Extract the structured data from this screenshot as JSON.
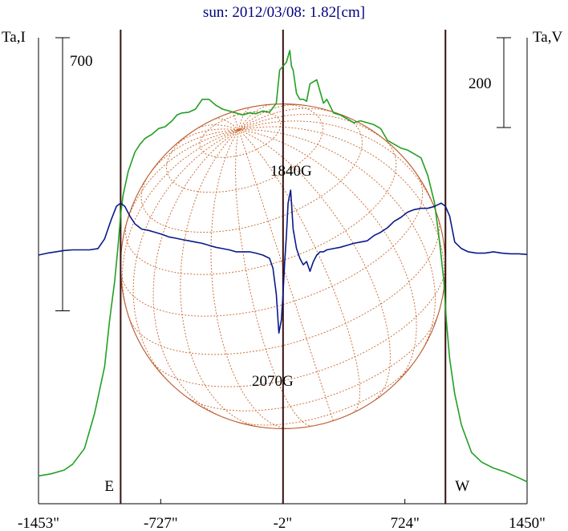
{
  "chart_data": {
    "type": "line",
    "title": "sun: 2012/03/08: 1.82[cm]",
    "ylabel_left": "Ta,I",
    "ylabel_right": "Ta,V",
    "scale_left_label": "700",
    "scale_right_label": "200",
    "x_ticks": [
      {
        "value": -1453,
        "label": "-1453\""
      },
      {
        "value": -727,
        "label": "-727\""
      },
      {
        "value": -2,
        "label": "-2\""
      },
      {
        "value": 724,
        "label": "724\""
      },
      {
        "value": 1450,
        "label": "1450\""
      }
    ],
    "xlim": [
      -1453,
      1450
    ],
    "vertical_lines": [
      {
        "x": -965,
        "label": "E"
      },
      {
        "x": 0,
        "label": ""
      },
      {
        "x": 965,
        "label": "W"
      }
    ],
    "annotations": [
      {
        "text": "1840G",
        "x": 60,
        "y_series": "V"
      },
      {
        "text": "2070G",
        "x": -30,
        "y_series": "V"
      }
    ],
    "solar_disk": {
      "center_x": 0,
      "radius_arcsec": 965,
      "color": "#b5562c",
      "grid_color": "#c8642a"
    },
    "series": [
      {
        "name": "I",
        "color": "#22a022",
        "x": [
          -1453,
          -1380,
          -1300,
          -1250,
          -1180,
          -1120,
          -1060,
          -1030,
          -1000,
          -980,
          -965,
          -950,
          -920,
          -880,
          -850,
          -820,
          -780,
          -740,
          -700,
          -660,
          -630,
          -600,
          -560,
          -520,
          -480,
          -440,
          -400,
          -360,
          -320,
          -280,
          -240,
          -200,
          -160,
          -120,
          -80,
          -40,
          -20,
          0,
          20,
          40,
          50,
          60,
          80,
          100,
          120,
          140,
          160,
          200,
          240,
          260,
          300,
          340,
          380,
          420,
          460,
          500,
          540,
          580,
          620,
          660,
          700,
          740,
          780,
          820,
          860,
          900,
          930,
          955,
          970,
          990,
          1020,
          1060,
          1120,
          1180,
          1250,
          1320,
          1400,
          1450
        ],
        "y": [
          20,
          25,
          35,
          50,
          90,
          180,
          300,
          420,
          520,
          610,
          690,
          740,
          800,
          850,
          870,
          885,
          895,
          910,
          915,
          930,
          945,
          950,
          952,
          960,
          985,
          985,
          970,
          960,
          955,
          950,
          945,
          950,
          948,
          955,
          952,
          975,
          1060,
          1070,
          1080,
          1110,
          1070,
          1060,
          1000,
          985,
          985,
          980,
          1025,
          1035,
          975,
          985,
          950,
          945,
          935,
          925,
          930,
          925,
          920,
          910,
          880,
          870,
          860,
          855,
          845,
          835,
          790,
          720,
          620,
          520,
          420,
          320,
          230,
          150,
          80,
          55,
          40,
          30,
          15,
          5
        ]
      },
      {
        "name": "V",
        "color": "#0a1a8a",
        "x": [
          -1453,
          -1400,
          -1350,
          -1300,
          -1250,
          -1200,
          -1150,
          -1100,
          -1060,
          -1020,
          -990,
          -965,
          -940,
          -910,
          -880,
          -840,
          -800,
          -760,
          -720,
          -680,
          -640,
          -600,
          -560,
          -520,
          -480,
          -440,
          -400,
          -360,
          -320,
          -280,
          -240,
          -200,
          -160,
          -120,
          -80,
          -60,
          -40,
          -25,
          -10,
          0,
          10,
          20,
          30,
          45,
          60,
          80,
          100,
          120,
          140,
          160,
          180,
          200,
          220,
          240,
          260,
          300,
          340,
          380,
          420,
          460,
          500,
          540,
          580,
          620,
          660,
          700,
          740,
          780,
          820,
          860,
          900,
          940,
          965,
          990,
          1020,
          1060,
          1100,
          1150,
          1200,
          1250,
          1300,
          1350,
          1400,
          1450
        ],
        "y": [
          0,
          3,
          5,
          7,
          8,
          8,
          8,
          10,
          25,
          55,
          75,
          80,
          75,
          60,
          48,
          40,
          38,
          35,
          32,
          28,
          26,
          24,
          22,
          20,
          18,
          15,
          12,
          10,
          8,
          5,
          5,
          5,
          3,
          0,
          -5,
          -20,
          -60,
          -120,
          -100,
          -60,
          -10,
          30,
          80,
          100,
          40,
          10,
          -5,
          -15,
          -10,
          -25,
          -10,
          0,
          5,
          5,
          8,
          10,
          12,
          15,
          18,
          20,
          22,
          30,
          35,
          42,
          52,
          58,
          66,
          70,
          72,
          72,
          75,
          80,
          75,
          60,
          20,
          10,
          5,
          3,
          3,
          5,
          3,
          2,
          2,
          1
        ]
      }
    ]
  }
}
